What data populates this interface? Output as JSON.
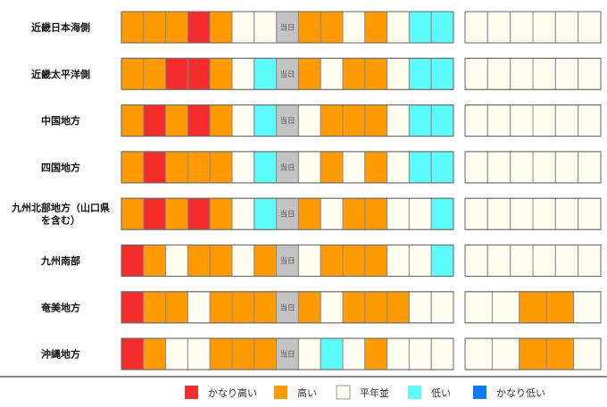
{
  "chart_data": {
    "type": "heatmap",
    "today_label": "当日",
    "colors": {
      "かなり高い": "#f52c2c",
      "高い": "#ff9a00",
      "平年並": "#fffdf0",
      "低い": "#5cfbfb",
      "かなり低い": "#0a7cfb"
    },
    "legend": [
      "かなり高い",
      "高い",
      "平年並",
      "低い",
      "かなり低い"
    ],
    "regions": [
      {
        "name": "近畿日本海側",
        "days": [
          "高い",
          "高い",
          "高い",
          "かなり高い",
          "高い",
          "平年並",
          "平年並",
          "当日",
          "高い",
          "高い",
          "平年並",
          "高い",
          "平年並",
          "低い",
          "低い"
        ],
        "extended": [
          "平年並",
          "平年並",
          "平年並",
          "平年並",
          "平年並",
          "平年並"
        ]
      },
      {
        "name": "近畿太平洋側",
        "days": [
          "高い",
          "高い",
          "かなり高い",
          "かなり高い",
          "高い",
          "平年並",
          "低い",
          "当日",
          "高い",
          "平年並",
          "高い",
          "高い",
          "平年並",
          "低い",
          "低い"
        ],
        "extended": [
          "平年並",
          "平年並",
          "平年並",
          "平年並",
          "平年並",
          "平年並"
        ]
      },
      {
        "name": "中国地方",
        "days": [
          "高い",
          "かなり高い",
          "高い",
          "かなり高い",
          "高い",
          "平年並",
          "低い",
          "当日",
          "平年並",
          "高い",
          "高い",
          "高い",
          "平年並",
          "低い",
          "低い"
        ],
        "extended": [
          "平年並",
          "平年並",
          "平年並",
          "平年並",
          "平年並",
          "平年並"
        ]
      },
      {
        "name": "四国地方",
        "days": [
          "高い",
          "かなり高い",
          "高い",
          "高い",
          "高い",
          "平年並",
          "低い",
          "当日",
          "平年並",
          "高い",
          "平年並",
          "高い",
          "平年並",
          "低い",
          "低い"
        ],
        "extended": [
          "平年並",
          "平年並",
          "平年並",
          "平年並",
          "平年並",
          "平年並"
        ]
      },
      {
        "name": "九州北部地方（山口県を含む）",
        "label_lines": [
          "九州北部地方（山口県",
          "を含む）"
        ],
        "days": [
          "高い",
          "かなり高い",
          "高い",
          "かなり高い",
          "高い",
          "平年並",
          "低い",
          "当日",
          "高い",
          "平年並",
          "高い",
          "高い",
          "平年並",
          "平年並",
          "低い"
        ],
        "extended": [
          "平年並",
          "平年並",
          "平年並",
          "平年並",
          "平年並",
          "平年並"
        ]
      },
      {
        "name": "九州南部",
        "days": [
          "かなり高い",
          "高い",
          "平年並",
          "高い",
          "高い",
          "平年並",
          "高い",
          "当日",
          "平年並",
          "高い",
          "高い",
          "高い",
          "平年並",
          "平年並",
          "低い"
        ],
        "extended": [
          "平年並",
          "平年並",
          "平年並",
          "平年並",
          "平年並",
          "平年並"
        ]
      },
      {
        "name": "奄美地方",
        "days": [
          "かなり高い",
          "高い",
          "高い",
          "平年並",
          "高い",
          "高い",
          "高い",
          "当日",
          "高い",
          "平年並",
          "高い",
          "高い",
          "高い",
          "平年並",
          "平年並"
        ],
        "extended": [
          "平年並",
          "平年並",
          "高い",
          "高い",
          "平年並"
        ]
      },
      {
        "name": "沖縄地方",
        "days": [
          "かなり高い",
          "高い",
          "平年並",
          "平年並",
          "高い",
          "高い",
          "高い",
          "当日",
          "平年並",
          "低い",
          "平年並",
          "高い",
          "平年並",
          "平年並",
          "平年並"
        ],
        "extended": [
          "平年並",
          "平年並",
          "高い",
          "高い",
          "平年並"
        ]
      }
    ]
  }
}
